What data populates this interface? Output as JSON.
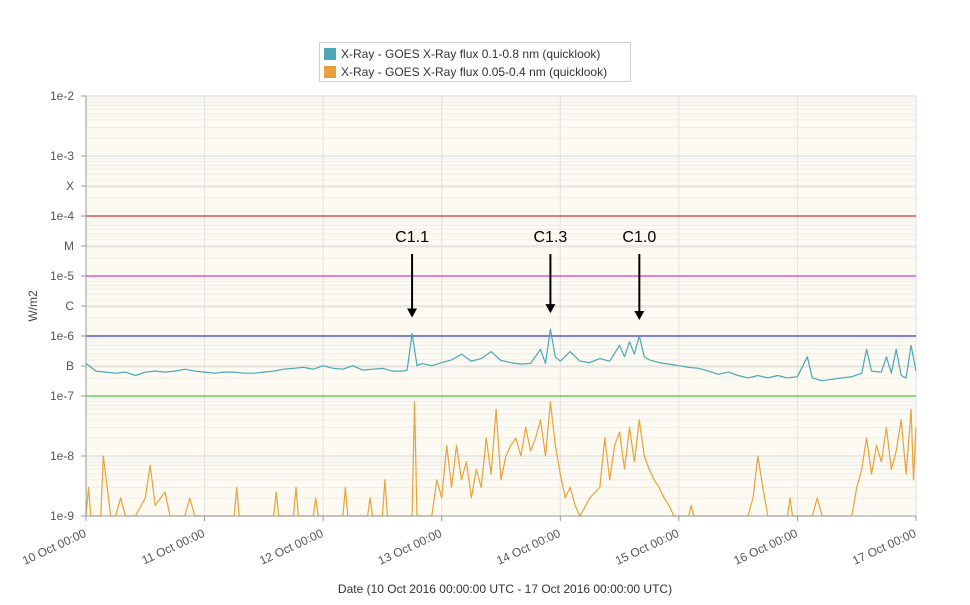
{
  "chart_data": {
    "type": "line",
    "title": "",
    "xlabel": "Date (10 Oct 2016 00:00:00 UTC - 17 Oct 2016 00:00:00 UTC)",
    "ylabel": "W/m2",
    "y_scale": "log",
    "ylim": [
      1e-09,
      0.01
    ],
    "xlim": [
      "2016-10-10T00:00:00Z",
      "2016-10-17T00:00:00Z"
    ],
    "grid": true,
    "legend_position": "top",
    "x_tick_labels": [
      "10 Oct 00:00",
      "11 Oct 00:00",
      "12 Oct 00:00",
      "13 Oct 00:00",
      "14 Oct 00:00",
      "15 Oct 00:00",
      "16 Oct 00:00",
      "17 Oct 00:00"
    ],
    "y_ticks": [
      {
        "value": 0.01,
        "label": "1e-2"
      },
      {
        "value": 0.001,
        "label": "1e-3"
      },
      {
        "value": 0.000316,
        "label": "X"
      },
      {
        "value": 0.0001,
        "label": "1e-4"
      },
      {
        "value": 3.16e-05,
        "label": "M"
      },
      {
        "value": 1e-05,
        "label": "1e-5"
      },
      {
        "value": 3.16e-06,
        "label": "C"
      },
      {
        "value": 1e-06,
        "label": "1e-6"
      },
      {
        "value": 3.16e-07,
        "label": "B"
      },
      {
        "value": 1e-07,
        "label": "1e-7"
      },
      {
        "value": 1e-08,
        "label": "1e-8"
      },
      {
        "value": 1e-09,
        "label": "1e-9"
      }
    ],
    "threshold_lines": [
      {
        "value": 0.0001,
        "color": "#d9534f"
      },
      {
        "value": 1e-05,
        "color": "#d65ad6"
      },
      {
        "value": 1e-06,
        "color": "#5555cc"
      },
      {
        "value": 1e-07,
        "color": "#66cc66"
      }
    ],
    "annotations": [
      {
        "label": "C1.1",
        "x": "2016-10-12T18:00:00Z",
        "value": 1.1e-06
      },
      {
        "label": "C1.3",
        "x": "2016-10-13T22:00:00Z",
        "value": 1.3e-06
      },
      {
        "label": "C1.0",
        "x": "2016-10-14T16:00:00Z",
        "value": 1e-06
      }
    ],
    "series": [
      {
        "name": "X-Ray - GOES X-Ray flux 0.1-0.8 nm (quicklook)",
        "color": "#4aa8b8",
        "points": [
          [
            "2016-10-10T00:00:00Z",
            3.5e-07
          ],
          [
            "2016-10-10T02:00:00Z",
            2.6e-07
          ],
          [
            "2016-10-10T04:00:00Z",
            2.5e-07
          ],
          [
            "2016-10-10T06:00:00Z",
            2.4e-07
          ],
          [
            "2016-10-10T08:00:00Z",
            2.5e-07
          ],
          [
            "2016-10-10T10:00:00Z",
            2.2e-07
          ],
          [
            "2016-10-10T12:00:00Z",
            2.5e-07
          ],
          [
            "2016-10-10T14:00:00Z",
            2.6e-07
          ],
          [
            "2016-10-10T16:00:00Z",
            2.5e-07
          ],
          [
            "2016-10-10T18:00:00Z",
            2.6e-07
          ],
          [
            "2016-10-10T20:00:00Z",
            2.8e-07
          ],
          [
            "2016-10-10T22:00:00Z",
            2.6e-07
          ],
          [
            "2016-10-11T00:00:00Z",
            2.5e-07
          ],
          [
            "2016-10-11T02:00:00Z",
            2.4e-07
          ],
          [
            "2016-10-11T04:00:00Z",
            2.5e-07
          ],
          [
            "2016-10-11T06:00:00Z",
            2.5e-07
          ],
          [
            "2016-10-11T08:00:00Z",
            2.4e-07
          ],
          [
            "2016-10-11T10:00:00Z",
            2.4e-07
          ],
          [
            "2016-10-11T12:00:00Z",
            2.5e-07
          ],
          [
            "2016-10-11T14:00:00Z",
            2.6e-07
          ],
          [
            "2016-10-11T16:00:00Z",
            2.8e-07
          ],
          [
            "2016-10-11T18:00:00Z",
            2.9e-07
          ],
          [
            "2016-10-11T20:00:00Z",
            3e-07
          ],
          [
            "2016-10-11T22:00:00Z",
            2.8e-07
          ],
          [
            "2016-10-12T00:00:00Z",
            3.2e-07
          ],
          [
            "2016-10-12T02:00:00Z",
            2.9e-07
          ],
          [
            "2016-10-12T04:00:00Z",
            2.8e-07
          ],
          [
            "2016-10-12T06:00:00Z",
            3.2e-07
          ],
          [
            "2016-10-12T08:00:00Z",
            2.7e-07
          ],
          [
            "2016-10-12T10:00:00Z",
            2.8e-07
          ],
          [
            "2016-10-12T12:00:00Z",
            2.9e-07
          ],
          [
            "2016-10-12T14:00:00Z",
            2.6e-07
          ],
          [
            "2016-10-12T16:00:00Z",
            2.6e-07
          ],
          [
            "2016-10-12T17:00:00Z",
            2.7e-07
          ],
          [
            "2016-10-12T18:00:00Z",
            1.1e-06
          ],
          [
            "2016-10-12T19:00:00Z",
            3.2e-07
          ],
          [
            "2016-10-12T20:00:00Z",
            3.5e-07
          ],
          [
            "2016-10-12T22:00:00Z",
            3.2e-07
          ],
          [
            "2016-10-13T00:00:00Z",
            3.6e-07
          ],
          [
            "2016-10-13T02:00:00Z",
            4e-07
          ],
          [
            "2016-10-13T04:00:00Z",
            5e-07
          ],
          [
            "2016-10-13T06:00:00Z",
            3.8e-07
          ],
          [
            "2016-10-13T08:00:00Z",
            4.2e-07
          ],
          [
            "2016-10-13T10:00:00Z",
            5.5e-07
          ],
          [
            "2016-10-13T12:00:00Z",
            3.9e-07
          ],
          [
            "2016-10-13T14:00:00Z",
            3.6e-07
          ],
          [
            "2016-10-13T16:00:00Z",
            3.4e-07
          ],
          [
            "2016-10-13T18:00:00Z",
            3.5e-07
          ],
          [
            "2016-10-13T20:00:00Z",
            6e-07
          ],
          [
            "2016-10-13T21:00:00Z",
            3.5e-07
          ],
          [
            "2016-10-13T22:00:00Z",
            1.3e-06
          ],
          [
            "2016-10-13T23:00:00Z",
            4.5e-07
          ],
          [
            "2016-10-14T00:00:00Z",
            3.8e-07
          ],
          [
            "2016-10-14T02:00:00Z",
            5.5e-07
          ],
          [
            "2016-10-14T04:00:00Z",
            3.8e-07
          ],
          [
            "2016-10-14T06:00:00Z",
            3.6e-07
          ],
          [
            "2016-10-14T08:00:00Z",
            4.2e-07
          ],
          [
            "2016-10-14T10:00:00Z",
            3.8e-07
          ],
          [
            "2016-10-14T12:00:00Z",
            7e-07
          ],
          [
            "2016-10-14T13:00:00Z",
            4.5e-07
          ],
          [
            "2016-10-14T14:00:00Z",
            8e-07
          ],
          [
            "2016-10-14T15:00:00Z",
            5e-07
          ],
          [
            "2016-10-14T16:00:00Z",
            1e-06
          ],
          [
            "2016-10-14T17:00:00Z",
            4.5e-07
          ],
          [
            "2016-10-14T18:00:00Z",
            4e-07
          ],
          [
            "2016-10-14T20:00:00Z",
            3.6e-07
          ],
          [
            "2016-10-14T22:00:00Z",
            3.4e-07
          ],
          [
            "2016-10-15T00:00:00Z",
            3.2e-07
          ],
          [
            "2016-10-15T02:00:00Z",
            3e-07
          ],
          [
            "2016-10-15T04:00:00Z",
            2.9e-07
          ],
          [
            "2016-10-15T06:00:00Z",
            2.6e-07
          ],
          [
            "2016-10-15T08:00:00Z",
            2.3e-07
          ],
          [
            "2016-10-15T10:00:00Z",
            2.5e-07
          ],
          [
            "2016-10-15T12:00:00Z",
            2.2e-07
          ],
          [
            "2016-10-15T14:00:00Z",
            2e-07
          ],
          [
            "2016-10-15T16:00:00Z",
            2.2e-07
          ],
          [
            "2016-10-15T18:00:00Z",
            2e-07
          ],
          [
            "2016-10-15T20:00:00Z",
            2.2e-07
          ],
          [
            "2016-10-15T22:00:00Z",
            2e-07
          ],
          [
            "2016-10-16T00:00:00Z",
            2.1e-07
          ],
          [
            "2016-10-16T02:00:00Z",
            4.5e-07
          ],
          [
            "2016-10-16T03:00:00Z",
            2e-07
          ],
          [
            "2016-10-16T05:00:00Z",
            1.8e-07
          ],
          [
            "2016-10-16T07:00:00Z",
            1.9e-07
          ],
          [
            "2016-10-16T09:00:00Z",
            2e-07
          ],
          [
            "2016-10-16T11:00:00Z",
            2.1e-07
          ],
          [
            "2016-10-16T13:00:00Z",
            2.4e-07
          ],
          [
            "2016-10-16T14:00:00Z",
            6e-07
          ],
          [
            "2016-10-16T15:00:00Z",
            2.6e-07
          ],
          [
            "2016-10-16T17:00:00Z",
            2.5e-07
          ],
          [
            "2016-10-16T18:00:00Z",
            4.5e-07
          ],
          [
            "2016-10-16T19:00:00Z",
            2.4e-07
          ],
          [
            "2016-10-16T20:00:00Z",
            6e-07
          ],
          [
            "2016-10-16T21:00:00Z",
            2.2e-07
          ],
          [
            "2016-10-16T22:00:00Z",
            2e-07
          ],
          [
            "2016-10-16T23:00:00Z",
            7e-07
          ],
          [
            "2016-10-17T00:00:00Z",
            2.6e-07
          ]
        ]
      },
      {
        "name": "X-Ray - GOES X-Ray flux 0.05-0.4 nm (quicklook)",
        "color": "#e8a23a",
        "points": [
          [
            "2016-10-10T00:00:00Z",
            1e-09
          ],
          [
            "2016-10-10T00:30:00Z",
            3e-09
          ],
          [
            "2016-10-10T01:00:00Z",
            1e-09
          ],
          [
            "2016-10-10T03:00:00Z",
            1e-09
          ],
          [
            "2016-10-10T03:30:00Z",
            1e-08
          ],
          [
            "2016-10-10T05:00:00Z",
            1e-09
          ],
          [
            "2016-10-10T06:00:00Z",
            1e-09
          ],
          [
            "2016-10-10T07:00:00Z",
            2e-09
          ],
          [
            "2016-10-10T08:00:00Z",
            1e-09
          ],
          [
            "2016-10-10T10:00:00Z",
            1e-09
          ],
          [
            "2016-10-10T12:00:00Z",
            2e-09
          ],
          [
            "2016-10-10T13:00:00Z",
            7e-09
          ],
          [
            "2016-10-10T14:00:00Z",
            1.5e-09
          ],
          [
            "2016-10-10T16:00:00Z",
            2.5e-09
          ],
          [
            "2016-10-10T17:00:00Z",
            1e-09
          ],
          [
            "2016-10-10T20:00:00Z",
            1e-09
          ],
          [
            "2016-10-10T21:00:00Z",
            2e-09
          ],
          [
            "2016-10-10T22:00:00Z",
            1e-09
          ],
          [
            "2016-10-11T06:00:00Z",
            1e-09
          ],
          [
            "2016-10-11T06:30:00Z",
            3e-09
          ],
          [
            "2016-10-11T07:00:00Z",
            1e-09
          ],
          [
            "2016-10-11T14:00:00Z",
            1e-09
          ],
          [
            "2016-10-11T14:30:00Z",
            2.5e-09
          ],
          [
            "2016-10-11T15:00:00Z",
            1e-09
          ],
          [
            "2016-10-11T18:00:00Z",
            1e-09
          ],
          [
            "2016-10-11T18:30:00Z",
            3e-09
          ],
          [
            "2016-10-11T19:00:00Z",
            1e-09
          ],
          [
            "2016-10-11T22:00:00Z",
            1e-09
          ],
          [
            "2016-10-11T22:30:00Z",
            2e-09
          ],
          [
            "2016-10-11T23:00:00Z",
            1e-09
          ],
          [
            "2016-10-12T04:00:00Z",
            1e-09
          ],
          [
            "2016-10-12T04:30:00Z",
            3e-09
          ],
          [
            "2016-10-12T05:00:00Z",
            1e-09
          ],
          [
            "2016-10-12T09:00:00Z",
            1e-09
          ],
          [
            "2016-10-12T09:30:00Z",
            2e-09
          ],
          [
            "2016-10-12T10:00:00Z",
            1e-09
          ],
          [
            "2016-10-12T12:00:00Z",
            1e-09
          ],
          [
            "2016-10-12T12:30:00Z",
            4e-09
          ],
          [
            "2016-10-12T13:00:00Z",
            1e-09
          ],
          [
            "2016-10-12T18:00:00Z",
            1e-09
          ],
          [
            "2016-10-12T18:30:00Z",
            8e-08
          ],
          [
            "2016-10-12T19:00:00Z",
            1e-09
          ],
          [
            "2016-10-12T22:00:00Z",
            1e-09
          ],
          [
            "2016-10-12T23:00:00Z",
            4e-09
          ],
          [
            "2016-10-13T00:00:00Z",
            2e-09
          ],
          [
            "2016-10-13T01:00:00Z",
            1.5e-08
          ],
          [
            "2016-10-13T02:00:00Z",
            3e-09
          ],
          [
            "2016-10-13T03:00:00Z",
            1.5e-08
          ],
          [
            "2016-10-13T04:00:00Z",
            4e-09
          ],
          [
            "2016-10-13T05:00:00Z",
            8e-09
          ],
          [
            "2016-10-13T06:00:00Z",
            2e-09
          ],
          [
            "2016-10-13T07:00:00Z",
            6e-09
          ],
          [
            "2016-10-13T08:00:00Z",
            3e-09
          ],
          [
            "2016-10-13T09:00:00Z",
            2e-08
          ],
          [
            "2016-10-13T10:00:00Z",
            5e-09
          ],
          [
            "2016-10-13T11:00:00Z",
            6e-08
          ],
          [
            "2016-10-13T12:00:00Z",
            4e-09
          ],
          [
            "2016-10-13T13:00:00Z",
            1e-08
          ],
          [
            "2016-10-13T14:00:00Z",
            1.5e-08
          ],
          [
            "2016-10-13T15:00:00Z",
            2e-08
          ],
          [
            "2016-10-13T16:00:00Z",
            1e-08
          ],
          [
            "2016-10-13T17:00:00Z",
            3e-08
          ],
          [
            "2016-10-13T18:00:00Z",
            1.2e-08
          ],
          [
            "2016-10-13T19:00:00Z",
            2e-08
          ],
          [
            "2016-10-13T20:00:00Z",
            4e-08
          ],
          [
            "2016-10-13T21:00:00Z",
            1e-08
          ],
          [
            "2016-10-13T22:00:00Z",
            8e-08
          ],
          [
            "2016-10-13T23:00:00Z",
            1.5e-08
          ],
          [
            "2016-10-14T00:00:00Z",
            5e-09
          ],
          [
            "2016-10-14T01:00:00Z",
            2e-09
          ],
          [
            "2016-10-14T02:00:00Z",
            3e-09
          ],
          [
            "2016-10-14T03:00:00Z",
            1.5e-09
          ],
          [
            "2016-10-14T04:00:00Z",
            1e-09
          ],
          [
            "2016-10-14T06:00:00Z",
            2e-09
          ],
          [
            "2016-10-14T08:00:00Z",
            3e-09
          ],
          [
            "2016-10-14T09:00:00Z",
            2e-08
          ],
          [
            "2016-10-14T10:00:00Z",
            4e-09
          ],
          [
            "2016-10-14T11:00:00Z",
            1.5e-08
          ],
          [
            "2016-10-14T12:00:00Z",
            2.5e-08
          ],
          [
            "2016-10-14T13:00:00Z",
            6e-09
          ],
          [
            "2016-10-14T14:00:00Z",
            3e-08
          ],
          [
            "2016-10-14T15:00:00Z",
            8e-09
          ],
          [
            "2016-10-14T16:00:00Z",
            4e-08
          ],
          [
            "2016-10-14T17:00:00Z",
            1e-08
          ],
          [
            "2016-10-14T18:00:00Z",
            6e-09
          ],
          [
            "2016-10-14T19:00:00Z",
            4e-09
          ],
          [
            "2016-10-14T20:00:00Z",
            3e-09
          ],
          [
            "2016-10-14T21:00:00Z",
            2e-09
          ],
          [
            "2016-10-14T22:00:00Z",
            1.5e-09
          ],
          [
            "2016-10-14T23:00:00Z",
            1e-09
          ],
          [
            "2016-10-15T02:00:00Z",
            1e-09
          ],
          [
            "2016-10-15T02:30:00Z",
            1.5e-09
          ],
          [
            "2016-10-15T03:00:00Z",
            1e-09
          ],
          [
            "2016-10-15T14:00:00Z",
            1e-09
          ],
          [
            "2016-10-15T15:00:00Z",
            2e-09
          ],
          [
            "2016-10-15T16:00:00Z",
            1e-08
          ],
          [
            "2016-10-15T17:00:00Z",
            3e-09
          ],
          [
            "2016-10-15T18:00:00Z",
            1e-09
          ],
          [
            "2016-10-15T22:00:00Z",
            1e-09
          ],
          [
            "2016-10-15T22:30:00Z",
            2e-09
          ],
          [
            "2016-10-15T23:00:00Z",
            1e-09
          ],
          [
            "2016-10-16T03:00:00Z",
            1e-09
          ],
          [
            "2016-10-16T04:00:00Z",
            2e-09
          ],
          [
            "2016-10-16T05:00:00Z",
            1e-09
          ],
          [
            "2016-10-16T11:00:00Z",
            1e-09
          ],
          [
            "2016-10-16T12:00:00Z",
            3e-09
          ],
          [
            "2016-10-16T13:00:00Z",
            6e-09
          ],
          [
            "2016-10-16T14:00:00Z",
            2e-08
          ],
          [
            "2016-10-16T15:00:00Z",
            5e-09
          ],
          [
            "2016-10-16T16:00:00Z",
            1.5e-08
          ],
          [
            "2016-10-16T17:00:00Z",
            8e-09
          ],
          [
            "2016-10-16T18:00:00Z",
            3e-08
          ],
          [
            "2016-10-16T19:00:00Z",
            6e-09
          ],
          [
            "2016-10-16T20:00:00Z",
            1.2e-08
          ],
          [
            "2016-10-16T21:00:00Z",
            4e-08
          ],
          [
            "2016-10-16T22:00:00Z",
            5e-09
          ],
          [
            "2016-10-16T23:00:00Z",
            6e-08
          ],
          [
            "2016-10-16T23:30:00Z",
            4e-09
          ],
          [
            "2016-10-17T00:00:00Z",
            3e-08
          ]
        ]
      }
    ]
  }
}
